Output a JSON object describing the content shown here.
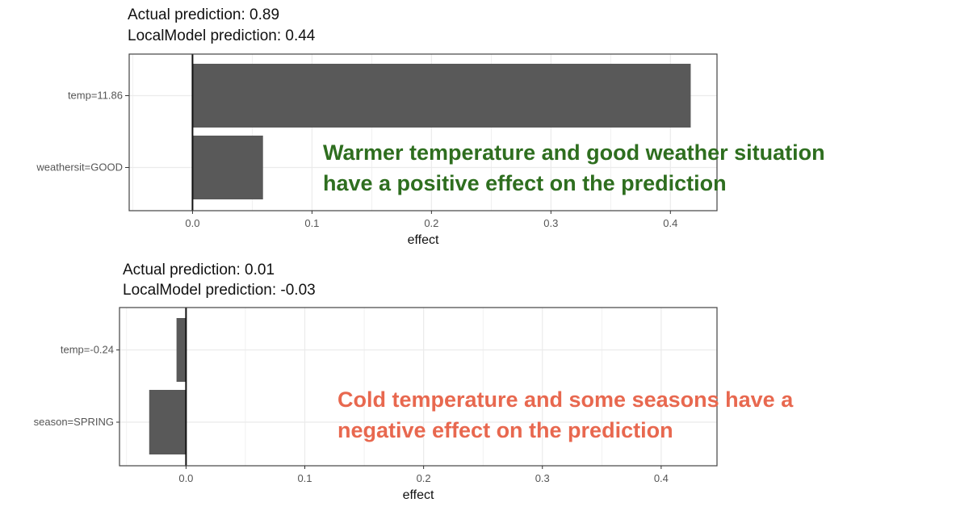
{
  "chart_data": [
    {
      "type": "bar",
      "orientation": "horizontal",
      "title": [
        "Actual prediction: 0.89",
        "LocalModel prediction: 0.44"
      ],
      "categories": [
        "temp=11.86",
        "weathersit=GOOD"
      ],
      "values": [
        0.417,
        0.059
      ],
      "xlabel": "effect",
      "ylabel": "",
      "xlim": [
        -0.053,
        0.439
      ],
      "xticks": [
        "0.0",
        "0.1",
        "0.2",
        "0.3",
        "0.4"
      ],
      "grid": true,
      "bar_color": "#595959",
      "annotation": {
        "lines": [
          "Warmer temperature and good weather situation",
          "have a positive effect on the prediction"
        ],
        "color": "#2e6e1f"
      }
    },
    {
      "type": "bar",
      "orientation": "horizontal",
      "title": [
        "Actual prediction: 0.01",
        "LocalModel prediction: -0.03"
      ],
      "categories": [
        "temp=-0.24",
        "season=SPRING"
      ],
      "values": [
        -0.008,
        -0.031
      ],
      "xlabel": "effect",
      "ylabel": "",
      "xlim": [
        -0.056,
        0.447
      ],
      "xticks": [
        "0.0",
        "0.1",
        "0.2",
        "0.3",
        "0.4"
      ],
      "grid": true,
      "bar_color": "#595959",
      "annotation": {
        "lines": [
          "Cold temperature and some seasons have a",
          "negative effect on the prediction"
        ],
        "color": "#e8684f"
      }
    }
  ]
}
